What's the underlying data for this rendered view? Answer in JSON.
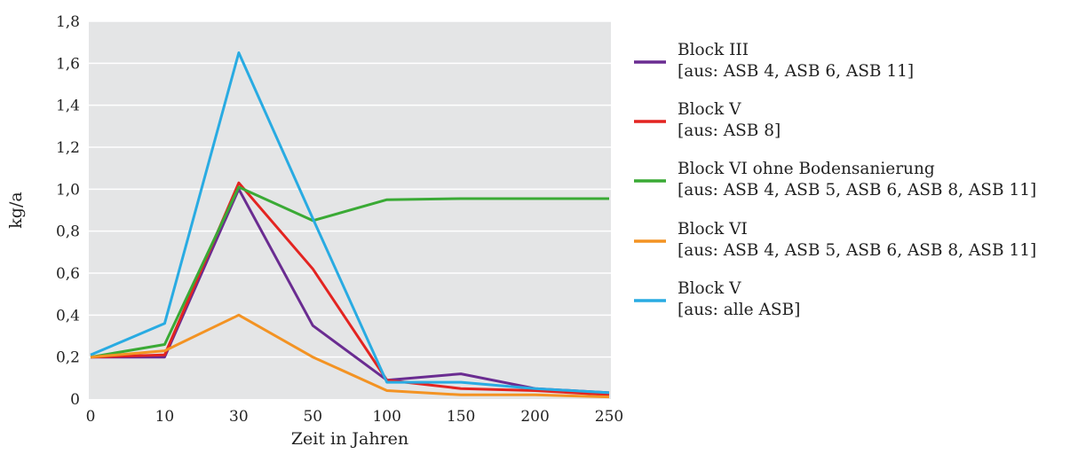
{
  "chart_data": {
    "type": "line",
    "xlabel": "Zeit in Jahren",
    "ylabel": "kg/a",
    "categories": [
      "0",
      "10",
      "30",
      "50",
      "100",
      "150",
      "200",
      "250"
    ],
    "yticks": [
      "0",
      "0,2",
      "0,4",
      "0,6",
      "0,8",
      "1,0",
      "1,2",
      "1,4",
      "1,6",
      "1,8"
    ],
    "ylim": [
      0,
      1.8
    ],
    "grid": "horizontal",
    "legend_position": "right",
    "series": [
      {
        "name": "Block III",
        "name_line2": "[aus: ASB 4, ASB 6, ASB 11]",
        "color": "#6a2c91",
        "values": [
          0.2,
          0.2,
          1.0,
          0.35,
          0.09,
          0.12,
          0.05,
          0.03
        ]
      },
      {
        "name": "Block V",
        "name_line2": "[aus: ASB 8]",
        "color": "#e32421",
        "values": [
          0.2,
          0.21,
          1.03,
          0.62,
          0.09,
          0.05,
          0.04,
          0.02
        ]
      },
      {
        "name": "Block VI ohne Bodensanierung",
        "name_line2": "[aus: ASB 4, ASB 5, ASB 6, ASB 8, ASB 11]",
        "color": "#3aaa35",
        "values": [
          0.2,
          0.26,
          1.01,
          0.85,
          0.95,
          0.955,
          0.955,
          0.955
        ]
      },
      {
        "name": "Block VI",
        "name_line2": "[aus: ASB 4, ASB 5, ASB 6, ASB 8, ASB 11]",
        "color": "#f39323",
        "values": [
          0.2,
          0.23,
          0.4,
          0.2,
          0.04,
          0.02,
          0.02,
          0.01
        ]
      },
      {
        "name": "Block V",
        "name_line2": "[aus: alle ASB]",
        "color": "#29abe2",
        "values": [
          0.21,
          0.36,
          1.65,
          0.86,
          0.08,
          0.08,
          0.05,
          0.03
        ]
      }
    ]
  }
}
